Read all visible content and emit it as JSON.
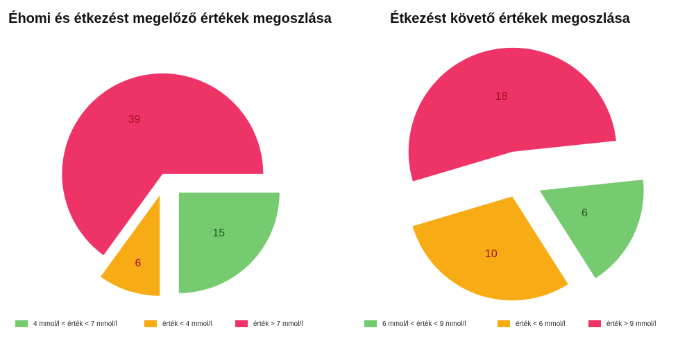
{
  "colors": {
    "green": "#76cb70",
    "orange": "#f7ac15",
    "red": "#ee3467",
    "label_dark_red": "#a01020",
    "label_dark_green": "#1f5a22"
  },
  "chart_data": [
    {
      "type": "pie",
      "title": "Éhomi és étkezést megelőző értékek megoszlása",
      "categories": [
        "4 mmol/l < érték < 7 mmol/l",
        "érték < 4 mmol/l",
        "érték > 7 mmol/l"
      ],
      "values": [
        15,
        6,
        39
      ],
      "value_labels": [
        "15",
        "6",
        "39"
      ],
      "colors": [
        "#76cb70",
        "#f7ac15",
        "#ee3467"
      ],
      "exploded": true,
      "legend": "bottom"
    },
    {
      "type": "pie",
      "title": "Étkezést követő értékek megoszlása",
      "categories": [
        "6 mmol/l < érték < 9 mmol/l",
        "érték < 6 mmol/l",
        "érték > 9 mmol/l"
      ],
      "values": [
        6,
        10,
        18
      ],
      "value_labels": [
        "6",
        "10",
        "18"
      ],
      "colors": [
        "#76cb70",
        "#f7ac15",
        "#ee3467"
      ],
      "exploded": true,
      "legend": "bottom"
    }
  ]
}
